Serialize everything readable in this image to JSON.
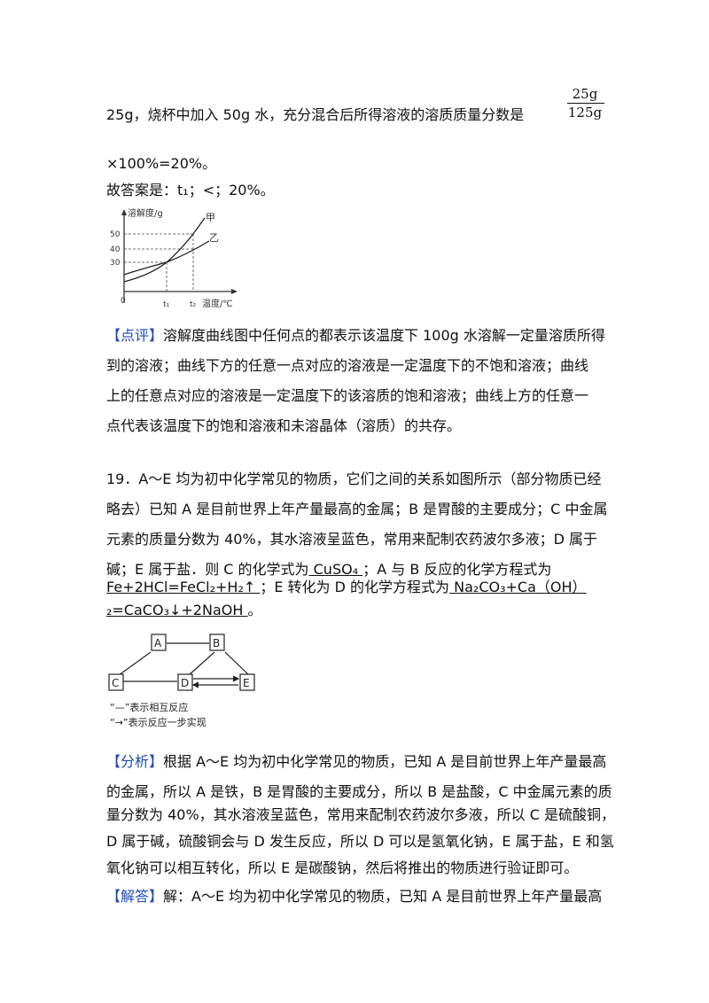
{
  "line1": "25g，烧杯中加入 50g 水，充分混合后所得溶液的溶质质量分数是",
  "fraction": {
    "numerator": "25g",
    "denominator": "125g"
  },
  "line2": "×100%=20%。",
  "answer_line": "故答案是：t₁；<；20%。",
  "chart_data": {
    "type": "line",
    "ylabel": "溶解度/g",
    "xlabel": "温度/℃",
    "y_ticks": [
      "50",
      "40",
      "30"
    ],
    "x_ticks": [
      "0",
      "t₁",
      "t₂"
    ],
    "series": [
      {
        "name": "甲"
      },
      {
        "name": "乙"
      }
    ]
  },
  "review": {
    "tag": "【点评】",
    "lines": [
      "溶解度曲线图中任何点的都表示该温度下 100g 水溶解一定量溶质所得",
      "到的溶液；曲线下方的任意一点对应的溶液是一定温度下的不饱和溶液；曲线",
      "上的任意点对应的溶液是一定温度下的该溶质的饱和溶液；曲线上方的任意一",
      "点代表该温度下的饱和溶液和未溶晶体（溶质）的共存。"
    ]
  },
  "q19": {
    "lines": [
      "19．A～E 均为初中化学常见的物质，它们之间的关系如图所示（部分物质已经",
      "略去）已知 A 是目前世界上年产量最高的金属；B 是胃酸的主要成分；C 中金属",
      "元素的质量分数为 40%，其水溶液呈蓝色，常用来配制农药波尔多液；D 属于"
    ],
    "line4_pre": "碱；E 属于盐．则 C 的化学式为",
    "ans1": "  CuSO₄  ",
    "line4_post": "；A 与 B 反应的化学方程式为",
    "ans2": "Fe+2HCl=FeCl₂+H₂↑    ",
    "line5_mid": "；E 转化为 D 的化学方程式为",
    "ans3a": "  Na₂CO₃+Ca（OH）",
    "ans3b": "₂=CaCO₃↓+2NaOH  ",
    "line6_end": "。"
  },
  "diagram": {
    "nodes": [
      "A",
      "B",
      "C",
      "D",
      "E"
    ],
    "legend1": "“—”表示相互反应",
    "legend2": "“→”表示反应一步实现"
  },
  "analysis": {
    "tag": "【分析】",
    "lines": [
      "根据 A～E 均为初中化学常见的物质，已知 A 是目前世界上年产量最高",
      "的金属，所以 A 是铁，B 是胃酸的主要成分，所以 B 是盐酸，C 中金属元素的质",
      "量分数为 40%，其水溶液呈蓝色，常用来配制农药波尔多液，所以 C 是硫酸铜，",
      "D 属于碱，硫酸铜会与 D 发生反应，所以 D 可以是氢氧化钠，E 属于盐，E 和氢",
      "氧化钠可以相互转化，所以 E 是碳酸钠，然后将推出的物质进行验证即可。"
    ]
  },
  "solution": {
    "tag": "【解答】",
    "line": "解：A～E 均为初中化学常见的物质，已知 A 是目前世界上年产量最高"
  }
}
